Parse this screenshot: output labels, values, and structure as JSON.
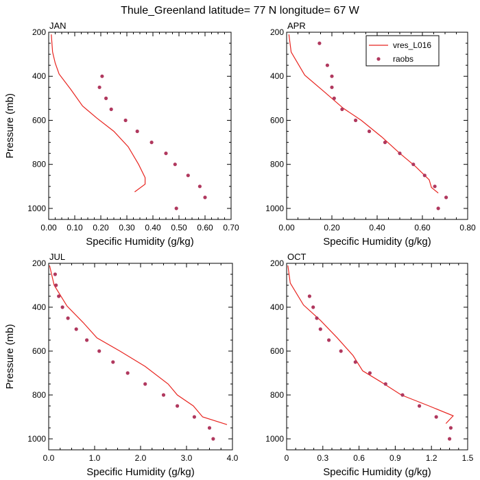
{
  "figure": {
    "title": "Thule_Greenland  latitude= 77 N longitude= 67 W"
  },
  "legend": {
    "line_label": "vres_L016",
    "dots_label": "raobs",
    "placement": "top-right of APR panel"
  },
  "colors": {
    "line": "#e8231e",
    "dots": "#b0385e",
    "axis": "#000000"
  },
  "chart_data": [
    {
      "type": "line",
      "panel": "JAN",
      "title": "JAN",
      "xlabel": "Specific Humidity (g/kg)",
      "ylabel": "Pressure (mb)",
      "xlim": [
        0,
        0.7
      ],
      "ylim": [
        1050,
        200
      ],
      "xticks": [
        0,
        0.1,
        0.2,
        0.3,
        0.4,
        0.5,
        0.6,
        0.7
      ],
      "xtick_labels": [
        "0.00",
        "0.10",
        "0.20",
        "0.30",
        "0.40",
        "0.50",
        "0.60",
        "0.70"
      ],
      "yticks": [
        200,
        400,
        600,
        800,
        1000
      ],
      "ytick_labels": [
        "200",
        "400",
        "600",
        "800",
        "1000"
      ],
      "series": [
        {
          "name": "vres_L016",
          "kind": "line",
          "x": [
            0.01,
            0.015,
            0.025,
            0.04,
            0.085,
            0.13,
            0.185,
            0.25,
            0.305,
            0.345,
            0.37,
            0.37,
            0.33
          ],
          "y": [
            210,
            290,
            340,
            390,
            460,
            535,
            590,
            650,
            720,
            800,
            860,
            890,
            925
          ]
        },
        {
          "name": "raobs",
          "kind": "scatter",
          "x": [
            0.205,
            0.195,
            0.22,
            0.24,
            0.295,
            0.34,
            0.395,
            0.45,
            0.485,
            0.535,
            0.58,
            0.6,
            0.49
          ],
          "y": [
            400,
            450,
            500,
            550,
            600,
            650,
            700,
            750,
            800,
            850,
            900,
            950,
            1000
          ]
        }
      ]
    },
    {
      "type": "line",
      "panel": "APR",
      "title": "APR",
      "xlabel": "Specific Humidity (g/kg)",
      "ylabel": "Pressure (mb)",
      "xlim": [
        0,
        0.8
      ],
      "ylim": [
        1050,
        200
      ],
      "xticks": [
        0,
        0.2,
        0.4,
        0.6,
        0.8
      ],
      "xtick_labels": [
        "0.00",
        "0.20",
        "0.40",
        "0.60",
        "0.80"
      ],
      "yticks": [
        200,
        400,
        600,
        800,
        1000
      ],
      "ytick_labels": [
        "200",
        "400",
        "600",
        "800",
        "1000"
      ],
      "series": [
        {
          "name": "vres_L016",
          "kind": "line",
          "x": [
            0.01,
            0.02,
            0.08,
            0.16,
            0.25,
            0.33,
            0.42,
            0.5,
            0.57,
            0.61,
            0.63,
            0.64,
            0.67
          ],
          "y": [
            210,
            290,
            395,
            465,
            545,
            600,
            675,
            750,
            810,
            850,
            870,
            905,
            930
          ]
        },
        {
          "name": "raobs",
          "kind": "scatter",
          "x": [
            0.145,
            0.18,
            0.2,
            0.2,
            0.21,
            0.245,
            0.305,
            0.365,
            0.435,
            0.5,
            0.56,
            0.61,
            0.655,
            0.705,
            0.67
          ],
          "y": [
            250,
            350,
            400,
            450,
            500,
            550,
            600,
            650,
            700,
            750,
            800,
            850,
            900,
            950,
            1000
          ]
        }
      ]
    },
    {
      "type": "line",
      "panel": "JUL",
      "title": "JUL",
      "xlabel": "Specific Humidity (g/kg)",
      "ylabel": "Pressure (mb)",
      "xlim": [
        0,
        4.0
      ],
      "ylim": [
        1050,
        200
      ],
      "xticks": [
        0,
        1,
        2,
        3,
        4
      ],
      "xtick_labels": [
        "0.0",
        "1.0",
        "2.0",
        "3.0",
        "4.0"
      ],
      "yticks": [
        200,
        400,
        600,
        800,
        1000
      ],
      "ytick_labels": [
        "200",
        "400",
        "600",
        "800",
        "1000"
      ],
      "series": [
        {
          "name": "vres_L016",
          "kind": "line",
          "x": [
            0.02,
            0.12,
            0.4,
            0.75,
            1.05,
            1.55,
            2.1,
            2.6,
            2.8,
            3.15,
            3.35,
            3.88
          ],
          "y": [
            210,
            300,
            395,
            470,
            540,
            600,
            670,
            750,
            800,
            850,
            900,
            935
          ]
        },
        {
          "name": "raobs",
          "kind": "scatter",
          "x": [
            0.14,
            0.16,
            0.22,
            0.3,
            0.42,
            0.6,
            0.83,
            1.1,
            1.4,
            1.72,
            2.1,
            2.5,
            2.8,
            3.17,
            3.5,
            3.58
          ],
          "y": [
            250,
            300,
            350,
            400,
            450,
            500,
            550,
            600,
            650,
            700,
            750,
            800,
            850,
            900,
            950,
            1000
          ]
        }
      ]
    },
    {
      "type": "line",
      "panel": "OCT",
      "title": "OCT",
      "xlabel": "Specific Humidity (g/kg)",
      "ylabel": "Pressure (mb)",
      "xlim": [
        0,
        1.5
      ],
      "ylim": [
        1050,
        200
      ],
      "xticks": [
        0,
        0.3,
        0.6,
        0.9,
        1.2,
        1.5
      ],
      "xtick_labels": [
        "0",
        "0.3",
        "0.6",
        "0.9",
        "1.2",
        "1.5"
      ],
      "yticks": [
        200,
        400,
        600,
        800,
        1000
      ],
      "ytick_labels": [
        "200",
        "400",
        "600",
        "800",
        "1000"
      ],
      "series": [
        {
          "name": "vres_L016",
          "kind": "line",
          "x": [
            0.01,
            0.03,
            0.14,
            0.28,
            0.42,
            0.55,
            0.63,
            0.78,
            0.95,
            1.18,
            1.38,
            1.32
          ],
          "y": [
            210,
            290,
            390,
            460,
            540,
            620,
            690,
            740,
            800,
            850,
            895,
            930
          ]
        },
        {
          "name": "raobs",
          "kind": "scatter",
          "x": [
            0.19,
            0.22,
            0.25,
            0.28,
            0.35,
            0.45,
            0.57,
            0.69,
            0.82,
            0.96,
            1.1,
            1.24,
            1.36,
            1.35
          ],
          "y": [
            350,
            400,
            450,
            500,
            550,
            600,
            650,
            700,
            750,
            800,
            850,
            900,
            950,
            1000
          ]
        }
      ]
    }
  ]
}
